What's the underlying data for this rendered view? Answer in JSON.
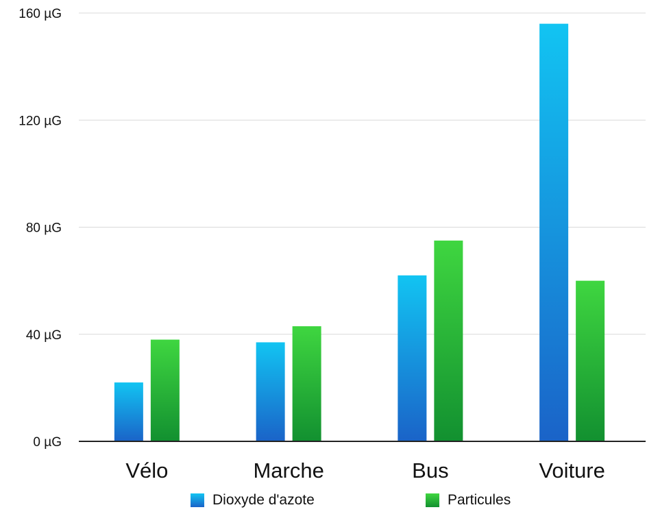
{
  "chart_data": {
    "type": "bar",
    "categories": [
      "Vélo",
      "Marche",
      "Bus",
      "Voiture"
    ],
    "series": [
      {
        "name": "Dioxyde d'azote",
        "values": [
          22,
          37,
          62,
          156
        ],
        "color_top": "#12c4f2",
        "color_bottom": "#1a63c8"
      },
      {
        "name": "Particules",
        "values": [
          38,
          43,
          75,
          60
        ],
        "color_top": "#3fd640",
        "color_bottom": "#129030"
      }
    ],
    "y_ticks": [
      "0 µG",
      "40 µG",
      "80 µG",
      "120 µG",
      "160 µG"
    ],
    "y_tick_values": [
      0,
      40,
      80,
      120,
      160
    ],
    "ylim": [
      0,
      160
    ],
    "grid": true,
    "legend_position": "bottom"
  }
}
